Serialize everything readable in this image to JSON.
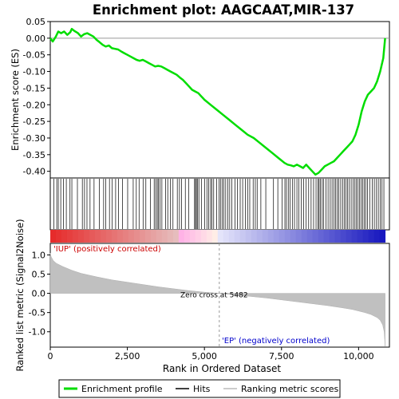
{
  "chart_data": {
    "type": "line",
    "title": "Enrichment plot: AAGCAAT,MIR-137",
    "top_panel": {
      "ylabel": "Enrichment score (ES)",
      "ylim": [
        -0.42,
        0.05
      ],
      "yticks": [
        0.05,
        0.0,
        -0.05,
        -0.1,
        -0.15,
        -0.2,
        -0.25,
        -0.3,
        -0.35,
        -0.4
      ],
      "ytick_labels": [
        "0.05",
        "0.00",
        "-0.05",
        "-0.10",
        "-0.15",
        "-0.20",
        "-0.25",
        "-0.30",
        "-0.35",
        "-0.40"
      ],
      "line_color": "#00dd00",
      "x": [
        0,
        80,
        180,
        260,
        350,
        450,
        550,
        650,
        700,
        780,
        900,
        1000,
        1100,
        1200,
        1300,
        1400,
        1500,
        1600,
        1700,
        1800,
        1900,
        2000,
        2100,
        2200,
        2300,
        2400,
        2500,
        2600,
        2700,
        2800,
        2900,
        3000,
        3100,
        3200,
        3300,
        3400,
        3500,
        3600,
        3700,
        3800,
        3900,
        4000,
        4100,
        4200,
        4300,
        4400,
        4500,
        4600,
        4700,
        4800,
        4900,
        5000,
        5200,
        5400,
        5600,
        5800,
        6000,
        6200,
        6400,
        6600,
        6800,
        7000,
        7200,
        7400,
        7600,
        7700,
        7800,
        7900,
        8000,
        8100,
        8200,
        8300,
        8400,
        8500,
        8600,
        8700,
        8800,
        8900,
        9000,
        9100,
        9200,
        9300,
        9400,
        9500,
        9600,
        9700,
        9800,
        9900,
        10000,
        10100,
        10200,
        10300,
        10400,
        10500,
        10600,
        10700,
        10800,
        10860
      ],
      "y": [
        0.0,
        -0.01,
        0.005,
        0.02,
        0.015,
        0.02,
        0.01,
        0.018,
        0.028,
        0.022,
        0.015,
        0.005,
        0.012,
        0.015,
        0.01,
        0.005,
        -0.005,
        -0.012,
        -0.02,
        -0.025,
        -0.022,
        -0.03,
        -0.032,
        -0.034,
        -0.04,
        -0.045,
        -0.05,
        -0.055,
        -0.06,
        -0.065,
        -0.068,
        -0.065,
        -0.07,
        -0.075,
        -0.08,
        -0.085,
        -0.083,
        -0.085,
        -0.09,
        -0.095,
        -0.1,
        -0.105,
        -0.11,
        -0.118,
        -0.125,
        -0.135,
        -0.145,
        -0.155,
        -0.16,
        -0.165,
        -0.175,
        -0.185,
        -0.2,
        -0.215,
        -0.23,
        -0.245,
        -0.26,
        -0.275,
        -0.29,
        -0.3,
        -0.315,
        -0.33,
        -0.345,
        -0.36,
        -0.375,
        -0.38,
        -0.382,
        -0.385,
        -0.38,
        -0.385,
        -0.39,
        -0.38,
        -0.39,
        -0.4,
        -0.41,
        -0.405,
        -0.395,
        -0.385,
        -0.38,
        -0.375,
        -0.37,
        -0.36,
        -0.35,
        -0.34,
        -0.33,
        -0.32,
        -0.31,
        -0.29,
        -0.26,
        -0.22,
        -0.19,
        -0.17,
        -0.16,
        -0.15,
        -0.13,
        -0.1,
        -0.06,
        0.0
      ]
    },
    "hits": [
      120,
      210,
      260,
      340,
      430,
      520,
      640,
      700,
      880,
      1040,
      1110,
      1190,
      1290,
      1420,
      1590,
      1730,
      1800,
      1920,
      2010,
      2120,
      2210,
      2340,
      2510,
      2690,
      2790,
      2880,
      3010,
      3100,
      3250,
      3370,
      3420,
      3470,
      3510,
      3560,
      3620,
      3740,
      3810,
      3900,
      3980,
      4120,
      4190,
      4260,
      4380,
      4490,
      4680,
      4710,
      4740,
      4780,
      4820,
      4900,
      5010,
      5080,
      5140,
      5200,
      5240,
      5300,
      5400,
      5470,
      5520,
      5580,
      5630,
      5690,
      5760,
      5820,
      5890,
      5990,
      6070,
      6160,
      6240,
      6330,
      6400,
      6470,
      6580,
      6650,
      6710,
      6830,
      6990,
      7240,
      7380,
      7520,
      7610,
      7660,
      7720,
      7780,
      7850,
      7920,
      8000,
      8060,
      8140,
      8220,
      8300,
      8380,
      8460,
      8540,
      8620,
      8680,
      8720,
      8760,
      8820,
      8870,
      8940,
      9010,
      9080,
      9140,
      9200,
      9250,
      9310,
      9360,
      9420,
      9480,
      9540,
      9590,
      9640,
      9700,
      9760,
      9820,
      9880,
      9930,
      9980,
      10030,
      10080,
      10130,
      10180,
      10230,
      10290,
      10360,
      10440,
      10510,
      10580,
      10640,
      10700,
      10760,
      10820
    ],
    "bottom_panel": {
      "ylabel": "Ranked list metric (Signal2Noise)",
      "xlabel": "Rank in Ordered Dataset",
      "ylim": [
        -1.4,
        1.3
      ],
      "yticks": [
        1.0,
        0.5,
        0.0,
        -0.5,
        -1.0
      ],
      "ytick_labels": [
        "1.0",
        "0.5",
        "0.0",
        "-0.5",
        "-1.0"
      ],
      "metric_rank": [
        0,
        30,
        100,
        200,
        400,
        700,
        1000,
        1500,
        2000,
        2500,
        3000,
        3500,
        4000,
        4500,
        5000,
        5482,
        6000,
        6500,
        7000,
        7500,
        8000,
        8500,
        9000,
        9500,
        9800,
        10000,
        10200,
        10400,
        10600,
        10700,
        10780,
        10830,
        10860
      ],
      "metric_value": [
        1.05,
        0.95,
        0.85,
        0.78,
        0.7,
        0.6,
        0.52,
        0.43,
        0.35,
        0.29,
        0.23,
        0.17,
        0.12,
        0.07,
        0.03,
        0.0,
        -0.04,
        -0.08,
        -0.12,
        -0.17,
        -0.22,
        -0.27,
        -0.32,
        -0.38,
        -0.42,
        -0.46,
        -0.5,
        -0.55,
        -0.63,
        -0.7,
        -0.82,
        -1.0,
        -1.38
      ],
      "zero_cross_label": "Zero cross at 5482",
      "zero_cross_rank": 5482,
      "positive_label": "'IUP' (positively correlated)",
      "negative_label": "'EP' (negatively correlated)"
    },
    "xlim": [
      0,
      11000
    ],
    "xticks": [
      0,
      2500,
      5000,
      7500,
      10000
    ],
    "xtick_labels": [
      "0",
      "2,500",
      "5,000",
      "7,500",
      "10,000"
    ],
    "legend": {
      "placement": "bottom",
      "entries": [
        {
          "label": "Enrichment profile",
          "color": "#00dd00"
        },
        {
          "label": "Hits",
          "color": "#000000"
        },
        {
          "label": "Ranking metric scores",
          "color": "#bbbbbb"
        }
      ]
    }
  }
}
